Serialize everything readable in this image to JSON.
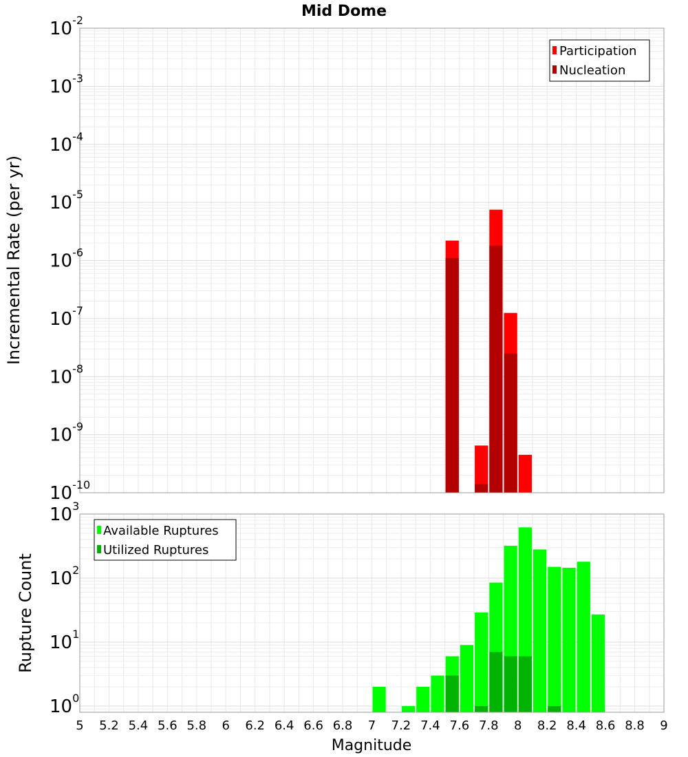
{
  "title": "Mid Dome",
  "xlabel": "Magnitude",
  "chart_data": [
    {
      "type": "bar",
      "ylabel": "Incremental Rate (per yr)",
      "yscale": "log",
      "ylim": [
        1e-10,
        0.01
      ],
      "xlim": [
        5,
        9
      ],
      "grid": true,
      "legend_position": "top-right",
      "bar_width": 0.1,
      "x": [
        7.55,
        7.75,
        7.85,
        7.95,
        8.05
      ],
      "series": [
        {
          "name": "Participation",
          "color": "#ff0000",
          "values": [
            2.2e-06,
            6.5e-10,
            7.5e-06,
            1.25e-07,
            4.5e-10
          ]
        },
        {
          "name": "Nucleation",
          "color": "#b30000",
          "values": [
            1.1e-06,
            1.4e-10,
            1.8e-06,
            2.5e-08,
            null
          ]
        }
      ]
    },
    {
      "type": "bar",
      "ylabel": "Rupture Count",
      "yscale": "log",
      "ylim": [
        0.8,
        1000
      ],
      "xlim": [
        5,
        9
      ],
      "grid": true,
      "legend_position": "top-left",
      "bar_width": 0.1,
      "x": [
        7.05,
        7.25,
        7.35,
        7.45,
        7.55,
        7.65,
        7.75,
        7.85,
        7.95,
        8.05,
        8.15,
        8.25,
        8.35,
        8.45,
        8.55
      ],
      "series": [
        {
          "name": "Available Ruptures",
          "color": "#00ff00",
          "values": [
            2,
            1,
            2,
            3,
            6,
            9,
            29,
            85,
            320,
            620,
            280,
            150,
            145,
            180,
            27
          ]
        },
        {
          "name": "Utilized Ruptures",
          "color": "#00b300",
          "values": [
            null,
            null,
            null,
            null,
            3,
            null,
            1,
            7,
            6,
            6,
            null,
            1,
            null,
            null,
            null
          ]
        }
      ]
    }
  ],
  "xticks": [
    "5",
    "5.2",
    "5.4",
    "5.6",
    "5.8",
    "6",
    "6.2",
    "6.4",
    "6.6",
    "6.8",
    "7",
    "7.2",
    "7.4",
    "7.6",
    "7.8",
    "8",
    "8.2",
    "8.4",
    "8.6",
    "8.8",
    "9"
  ]
}
